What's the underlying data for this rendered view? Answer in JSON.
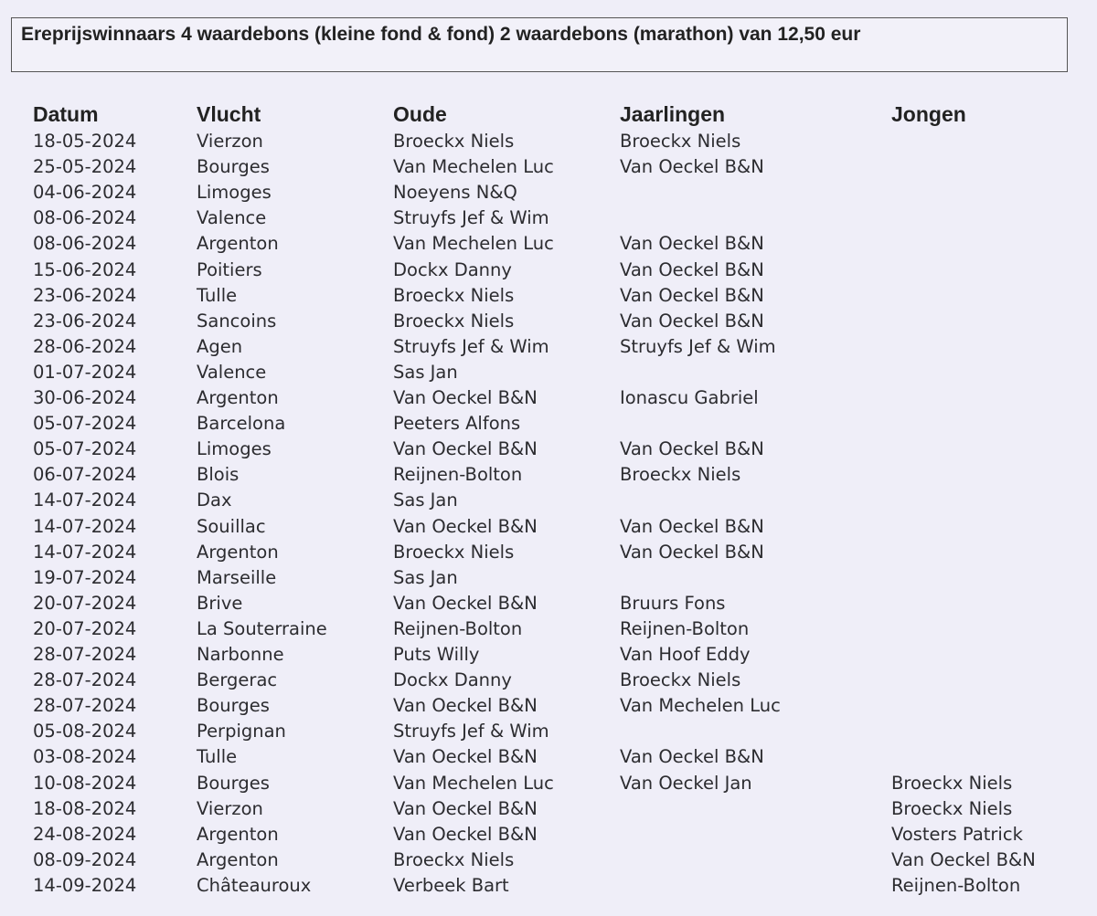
{
  "title": "Ereprijswinnaars 4 waardebons (kleine fond & fond) 2 waardebons (marathon) van 12,50 eur",
  "columns": [
    "Datum",
    "Vlucht",
    "Oude",
    "Jaarlingen",
    "Jongen"
  ],
  "rows": [
    [
      "18-05-2024",
      "Vierzon",
      "Broeckx Niels",
      "Broeckx Niels",
      ""
    ],
    [
      "25-05-2024",
      "Bourges",
      "Van Mechelen Luc",
      "Van Oeckel B&N",
      ""
    ],
    [
      "04-06-2024",
      "Limoges",
      "Noeyens N&Q",
      "",
      ""
    ],
    [
      "08-06-2024",
      "Valence",
      "Struyfs Jef & Wim",
      "",
      ""
    ],
    [
      "08-06-2024",
      "Argenton",
      "Van Mechelen Luc",
      "Van Oeckel B&N",
      ""
    ],
    [
      "15-06-2024",
      "Poitiers",
      "Dockx Danny",
      "Van Oeckel B&N",
      ""
    ],
    [
      "23-06-2024",
      "Tulle",
      "Broeckx Niels",
      "Van Oeckel B&N",
      ""
    ],
    [
      "23-06-2024",
      "Sancoins",
      "Broeckx Niels",
      "Van Oeckel B&N",
      ""
    ],
    [
      "28-06-2024",
      "Agen",
      "Struyfs Jef & Wim",
      "Struyfs Jef & Wim",
      ""
    ],
    [
      "01-07-2024",
      "Valence",
      "Sas Jan",
      "",
      ""
    ],
    [
      "30-06-2024",
      "Argenton",
      "Van Oeckel B&N",
      "Ionascu Gabriel",
      ""
    ],
    [
      "05-07-2024",
      "Barcelona",
      "Peeters Alfons",
      "",
      ""
    ],
    [
      "05-07-2024",
      "Limoges",
      "Van Oeckel B&N",
      "Van Oeckel B&N",
      ""
    ],
    [
      "06-07-2024",
      "Blois",
      "Reijnen-Bolton",
      "Broeckx Niels",
      ""
    ],
    [
      "14-07-2024",
      "Dax",
      "Sas Jan",
      "",
      ""
    ],
    [
      "14-07-2024",
      "Souillac",
      "Van Oeckel B&N",
      "Van Oeckel B&N",
      ""
    ],
    [
      "14-07-2024",
      "Argenton",
      "Broeckx Niels",
      "Van Oeckel B&N",
      ""
    ],
    [
      "19-07-2024",
      "Marseille",
      "Sas Jan",
      "",
      ""
    ],
    [
      "20-07-2024",
      "Brive",
      "Van Oeckel B&N",
      "Bruurs Fons",
      ""
    ],
    [
      "20-07-2024",
      "La Souterraine",
      "Reijnen-Bolton",
      "Reijnen-Bolton",
      ""
    ],
    [
      "28-07-2024",
      "Narbonne",
      "Puts Willy",
      "Van Hoof Eddy",
      ""
    ],
    [
      "28-07-2024",
      "Bergerac",
      "Dockx Danny",
      "Broeckx Niels",
      ""
    ],
    [
      "28-07-2024",
      "Bourges",
      "Van Oeckel B&N",
      "Van Mechelen Luc",
      ""
    ],
    [
      "05-08-2024",
      "Perpignan",
      "Struyfs Jef & Wim",
      "",
      ""
    ],
    [
      "03-08-2024",
      "Tulle",
      "Van Oeckel B&N",
      "Van Oeckel B&N",
      ""
    ],
    [
      "10-08-2024",
      "Bourges",
      "Van Mechelen Luc",
      "Van Oeckel Jan",
      "Broeckx Niels"
    ],
    [
      "18-08-2024",
      "Vierzon",
      "Van Oeckel B&N",
      "",
      "Broeckx Niels"
    ],
    [
      "24-08-2024",
      "Argenton",
      "Van Oeckel B&N",
      "",
      "Vosters Patrick"
    ],
    [
      "08-09-2024",
      "Argenton",
      "Broeckx Niels",
      "",
      "Van Oeckel B&N"
    ],
    [
      "14-09-2024",
      "Châteauroux",
      "Verbeek Bart",
      "",
      "Reijnen-Bolton"
    ]
  ]
}
